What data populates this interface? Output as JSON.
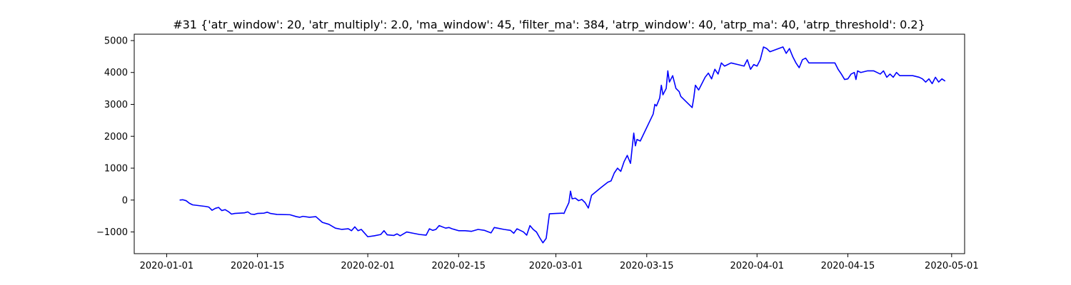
{
  "chart_data": {
    "type": "line",
    "title": "#31 {'atr_window': 20, 'atr_multiply': 2.0, 'ma_window': 45, 'filter_ma': 384, 'atrp_window': 40, 'atrp_ma': 40, 'atrp_threshold': 0.2}",
    "xlabel": "",
    "ylabel": "",
    "x_ticks": [
      "2020-01-01",
      "2020-01-15",
      "2020-02-01",
      "2020-02-15",
      "2020-03-01",
      "2020-03-15",
      "2020-04-01",
      "2020-04-15",
      "2020-05-01"
    ],
    "y_ticks": [
      -1000,
      0,
      1000,
      2000,
      3000,
      4000,
      5000
    ],
    "xlim": [
      "2019-12-27",
      "2020-05-03"
    ],
    "ylim": [
      -1680,
      5200
    ],
    "grid": false,
    "series": [
      {
        "color": "#0000ff",
        "points": [
          [
            "2020-01-03",
            0
          ],
          [
            "2020-01-03T12:00",
            10
          ],
          [
            "2020-01-04",
            -20
          ],
          [
            "2020-01-04T12:00",
            -100
          ],
          [
            "2020-01-05",
            -150
          ],
          [
            "2020-01-07",
            -200
          ],
          [
            "2020-01-07T12:00",
            -220
          ],
          [
            "2020-01-08",
            -320
          ],
          [
            "2020-01-08T12:00",
            -260
          ],
          [
            "2020-01-09",
            -230
          ],
          [
            "2020-01-09T12:00",
            -330
          ],
          [
            "2020-01-10",
            -300
          ],
          [
            "2020-01-10T12:00",
            -360
          ],
          [
            "2020-01-11",
            -440
          ],
          [
            "2020-01-11T12:00",
            -420
          ],
          [
            "2020-01-13",
            -400
          ],
          [
            "2020-01-13T12:00",
            -370
          ],
          [
            "2020-01-14",
            -440
          ],
          [
            "2020-01-14T12:00",
            -450
          ],
          [
            "2020-01-15",
            -420
          ],
          [
            "2020-01-16",
            -410
          ],
          [
            "2020-01-16T12:00",
            -380
          ],
          [
            "2020-01-17",
            -420
          ],
          [
            "2020-01-18",
            -450
          ],
          [
            "2020-01-20",
            -460
          ],
          [
            "2020-01-21",
            -520
          ],
          [
            "2020-01-21T12:00",
            -540
          ],
          [
            "2020-01-22",
            -510
          ],
          [
            "2020-01-23",
            -540
          ],
          [
            "2020-01-24",
            -520
          ],
          [
            "2020-01-25",
            -700
          ],
          [
            "2020-01-26",
            -760
          ],
          [
            "2020-01-27",
            -880
          ],
          [
            "2020-01-28",
            -920
          ],
          [
            "2020-01-29",
            -900
          ],
          [
            "2020-01-29T12:00",
            -960
          ],
          [
            "2020-01-30",
            -840
          ],
          [
            "2020-01-30T12:00",
            -960
          ],
          [
            "2020-01-31",
            -920
          ],
          [
            "2020-02-01",
            -1150
          ],
          [
            "2020-02-02",
            -1120
          ],
          [
            "2020-02-03",
            -1080
          ],
          [
            "2020-02-03T12:00",
            -960
          ],
          [
            "2020-02-04",
            -1090
          ],
          [
            "2020-02-05",
            -1110
          ],
          [
            "2020-02-05T12:00",
            -1060
          ],
          [
            "2020-02-06",
            -1120
          ],
          [
            "2020-02-07",
            -1000
          ],
          [
            "2020-02-08",
            -1040
          ],
          [
            "2020-02-09",
            -1080
          ],
          [
            "2020-02-10",
            -1100
          ],
          [
            "2020-02-10T12:00",
            -900
          ],
          [
            "2020-02-11",
            -950
          ],
          [
            "2020-02-11T12:00",
            -920
          ],
          [
            "2020-02-12",
            -800
          ],
          [
            "2020-02-13",
            -880
          ],
          [
            "2020-02-13T12:00",
            -860
          ],
          [
            "2020-02-14",
            -900
          ],
          [
            "2020-02-15",
            -960
          ],
          [
            "2020-02-16",
            -960
          ],
          [
            "2020-02-17",
            -980
          ],
          [
            "2020-02-18",
            -920
          ],
          [
            "2020-02-19",
            -950
          ],
          [
            "2020-02-20",
            -1030
          ],
          [
            "2020-02-20T12:00",
            -860
          ],
          [
            "2020-02-21",
            -880
          ],
          [
            "2020-02-22",
            -920
          ],
          [
            "2020-02-23",
            -950
          ],
          [
            "2020-02-23T12:00",
            -1040
          ],
          [
            "2020-02-24",
            -900
          ],
          [
            "2020-02-25",
            -1000
          ],
          [
            "2020-02-25T12:00",
            -1100
          ],
          [
            "2020-02-26",
            -800
          ],
          [
            "2020-02-26T12:00",
            -920
          ],
          [
            "2020-02-27",
            -1000
          ],
          [
            "2020-02-27T12:00",
            -1180
          ],
          [
            "2020-02-28",
            -1340
          ],
          [
            "2020-02-28T12:00",
            -1200
          ],
          [
            "2020-02-29",
            -430
          ],
          [
            "2020-03-01",
            -420
          ],
          [
            "2020-03-02",
            -410
          ],
          [
            "2020-03-02T06:00",
            -420
          ],
          [
            "2020-03-02T12:00",
            -300
          ],
          [
            "2020-03-03",
            -80
          ],
          [
            "2020-03-03T06:00",
            280
          ],
          [
            "2020-03-03T12:00",
            40
          ],
          [
            "2020-03-04",
            60
          ],
          [
            "2020-03-04T12:00",
            -20
          ],
          [
            "2020-03-05",
            20
          ],
          [
            "2020-03-05T12:00",
            -80
          ],
          [
            "2020-03-06",
            -250
          ],
          [
            "2020-03-06T12:00",
            150
          ],
          [
            "2020-03-08",
            400
          ],
          [
            "2020-03-09",
            560
          ],
          [
            "2020-03-09T12:00",
            600
          ],
          [
            "2020-03-10",
            850
          ],
          [
            "2020-03-10T12:00",
            1000
          ],
          [
            "2020-03-11",
            900
          ],
          [
            "2020-03-11T12:00",
            1200
          ],
          [
            "2020-03-12",
            1400
          ],
          [
            "2020-03-12T12:00",
            1150
          ],
          [
            "2020-03-13",
            2100
          ],
          [
            "2020-03-13T06:00",
            1700
          ],
          [
            "2020-03-13T12:00",
            1900
          ],
          [
            "2020-03-14",
            1850
          ],
          [
            "2020-03-16",
            2700
          ],
          [
            "2020-03-16T06:00",
            3000
          ],
          [
            "2020-03-16T12:00",
            2950
          ],
          [
            "2020-03-17",
            3200
          ],
          [
            "2020-03-17T06:00",
            3600
          ],
          [
            "2020-03-17T12:00",
            3300
          ],
          [
            "2020-03-18",
            3500
          ],
          [
            "2020-03-18T06:00",
            4050
          ],
          [
            "2020-03-18T12:00",
            3700
          ],
          [
            "2020-03-19",
            3900
          ],
          [
            "2020-03-19T12:00",
            3500
          ],
          [
            "2020-03-20",
            3400
          ],
          [
            "2020-03-20T06:00",
            3250
          ],
          [
            "2020-03-22",
            2900
          ],
          [
            "2020-03-22T06:00",
            3200
          ],
          [
            "2020-03-22T12:00",
            3600
          ],
          [
            "2020-03-23",
            3450
          ],
          [
            "2020-03-24",
            3850
          ],
          [
            "2020-03-24T12:00",
            3980
          ],
          [
            "2020-03-25",
            3800
          ],
          [
            "2020-03-25T12:00",
            4100
          ],
          [
            "2020-03-26",
            3950
          ],
          [
            "2020-03-26T12:00",
            4300
          ],
          [
            "2020-03-27",
            4200
          ],
          [
            "2020-03-28",
            4300
          ],
          [
            "2020-03-29",
            4250
          ],
          [
            "2020-03-30",
            4200
          ],
          [
            "2020-03-30T12:00",
            4400
          ],
          [
            "2020-03-31",
            4100
          ],
          [
            "2020-03-31T12:00",
            4250
          ],
          [
            "2020-04-01",
            4200
          ],
          [
            "2020-04-01T12:00",
            4400
          ],
          [
            "2020-04-02",
            4800
          ],
          [
            "2020-04-02T12:00",
            4750
          ],
          [
            "2020-04-03",
            4650
          ],
          [
            "2020-04-05",
            4800
          ],
          [
            "2020-04-05T12:00",
            4600
          ],
          [
            "2020-04-06",
            4750
          ],
          [
            "2020-04-06T12:00",
            4500
          ],
          [
            "2020-04-07",
            4300
          ],
          [
            "2020-04-07T12:00",
            4150
          ],
          [
            "2020-04-08",
            4400
          ],
          [
            "2020-04-08T12:00",
            4450
          ],
          [
            "2020-04-09",
            4300
          ],
          [
            "2020-04-13",
            4300
          ],
          [
            "2020-04-13T12:00",
            4100
          ],
          [
            "2020-04-14",
            3950
          ],
          [
            "2020-04-14T12:00",
            3780
          ],
          [
            "2020-04-15",
            3800
          ],
          [
            "2020-04-15T12:00",
            3950
          ],
          [
            "2020-04-16",
            4000
          ],
          [
            "2020-04-16T06:00",
            3780
          ],
          [
            "2020-04-16T12:00",
            4050
          ],
          [
            "2020-04-17",
            4000
          ],
          [
            "2020-04-18",
            4050
          ],
          [
            "2020-04-19",
            4050
          ],
          [
            "2020-04-19T12:00",
            4000
          ],
          [
            "2020-04-20",
            3950
          ],
          [
            "2020-04-20T12:00",
            4050
          ],
          [
            "2020-04-21",
            3850
          ],
          [
            "2020-04-21T12:00",
            3950
          ],
          [
            "2020-04-22",
            3850
          ],
          [
            "2020-04-22T12:00",
            4000
          ],
          [
            "2020-04-23",
            3900
          ],
          [
            "2020-04-24",
            3900
          ],
          [
            "2020-04-25",
            3900
          ],
          [
            "2020-04-26",
            3850
          ],
          [
            "2020-04-26T12:00",
            3800
          ],
          [
            "2020-04-27",
            3700
          ],
          [
            "2020-04-27T12:00",
            3800
          ],
          [
            "2020-04-28",
            3650
          ],
          [
            "2020-04-28T12:00",
            3850
          ],
          [
            "2020-04-29",
            3700
          ],
          [
            "2020-04-29T12:00",
            3800
          ],
          [
            "2020-04-30",
            3730
          ]
        ]
      }
    ]
  }
}
